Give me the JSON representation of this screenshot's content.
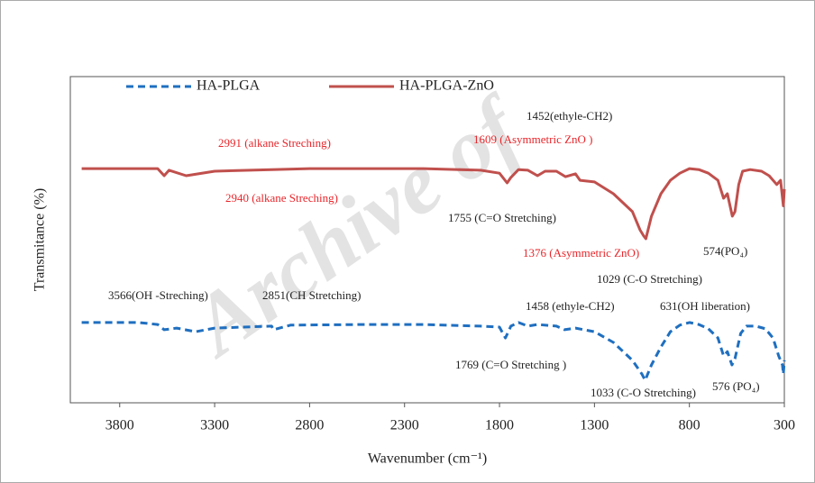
{
  "chart_data": {
    "type": "line",
    "watermark": "Archive of",
    "xlabel": "Wavenumber (cm⁻¹)",
    "ylabel": "Transmitance (%)",
    "xlim": [
      4060,
      300
    ],
    "ylim": [
      0,
      100
    ],
    "xticks": [
      3800,
      3300,
      2800,
      2300,
      1800,
      1300,
      800,
      300
    ],
    "series": [
      {
        "name": "HA-PLGA",
        "color": "#1f6fc0",
        "dashed": true,
        "x": [
          4000,
          3700,
          3600,
          3566,
          3500,
          3400,
          3300,
          3000,
          2990,
          2900,
          2500,
          2200,
          1900,
          1800,
          1769,
          1740,
          1700,
          1650,
          1600,
          1500,
          1458,
          1400,
          1300,
          1200,
          1100,
          1050,
          1033,
          1000,
          950,
          900,
          850,
          800,
          750,
          700,
          650,
          620,
          600,
          576,
          560,
          530,
          500,
          450,
          400,
          360,
          330,
          310,
          305,
          300
        ],
        "values": [
          24.6,
          24.6,
          24.0,
          22.4,
          22.9,
          21.8,
          22.9,
          23.5,
          22.4,
          23.8,
          24.0,
          24.0,
          23.5,
          23.2,
          19.9,
          23.5,
          24.6,
          23.5,
          24.0,
          23.5,
          22.4,
          22.9,
          21.8,
          18.5,
          13.0,
          8.8,
          6.9,
          11.6,
          17.1,
          21.8,
          23.8,
          24.6,
          24.0,
          22.7,
          19.9,
          14.4,
          15.7,
          11.6,
          13.5,
          21.3,
          23.5,
          23.5,
          22.7,
          19.9,
          14.4,
          11.6,
          8.8,
          13.0
        ]
      },
      {
        "name": "HA-PLGA-ZnO",
        "color": "#c0504d",
        "dashed": false,
        "x": [
          4000,
          3700,
          3600,
          3566,
          3540,
          3450,
          3300,
          3000,
          2800,
          2500,
          2200,
          1900,
          1800,
          1760,
          1740,
          1700,
          1650,
          1600,
          1560,
          1500,
          1452,
          1400,
          1376,
          1300,
          1200,
          1100,
          1060,
          1040,
          1029,
          1000,
          950,
          900,
          850,
          800,
          750,
          700,
          650,
          620,
          600,
          574,
          560,
          540,
          520,
          480,
          420,
          380,
          340,
          320,
          305,
          300
        ],
        "values": [
          71.8,
          71.8,
          71.8,
          69.6,
          71.3,
          69.6,
          71.0,
          71.5,
          71.8,
          71.8,
          71.8,
          71.3,
          70.4,
          67.4,
          69.1,
          71.5,
          71.3,
          69.6,
          71.0,
          71.0,
          69.3,
          70.2,
          68.2,
          67.7,
          64.1,
          58.6,
          53.0,
          51.1,
          50.3,
          57.2,
          64.1,
          68.2,
          70.4,
          71.8,
          71.5,
          70.4,
          68.2,
          62.7,
          64.1,
          57.2,
          58.6,
          66.9,
          71.0,
          71.5,
          71.0,
          69.6,
          66.9,
          68.2,
          60.4,
          65.5
        ]
      }
    ],
    "annotations": [
      {
        "text": "1452(ethyle-CH2)",
        "color": "#222222"
      },
      {
        "text": "2991 (alkane Streching)",
        "color": "#e8262b"
      },
      {
        "text": "1609 (Asymmetric ZnO )",
        "color": "#e8262b"
      },
      {
        "text": "2940 (alkane Streching)",
        "color": "#e8262b"
      },
      {
        "text": "1755 (C=O Stretching)",
        "color": "#222222"
      },
      {
        "text": "1376 (Asymmetric ZnO)",
        "color": "#e8262b"
      },
      {
        "text": "574(PO₄)",
        "color": "#222222"
      },
      {
        "text": "1029 (C-O Stretching)",
        "color": "#222222"
      },
      {
        "text": "3566(OH -Streching)",
        "color": "#222222"
      },
      {
        "text": "2851(CH Stretching)",
        "color": "#222222"
      },
      {
        "text": "1458 (ethyle-CH2)",
        "color": "#222222"
      },
      {
        "text": "631(OH liberation)",
        "color": "#222222"
      },
      {
        "text": "1769 (C=O Stretching )",
        "color": "#222222"
      },
      {
        "text": "1033 (C-O Stretching)",
        "color": "#222222"
      },
      {
        "text": "576 (PO₄)",
        "color": "#222222"
      }
    ]
  }
}
